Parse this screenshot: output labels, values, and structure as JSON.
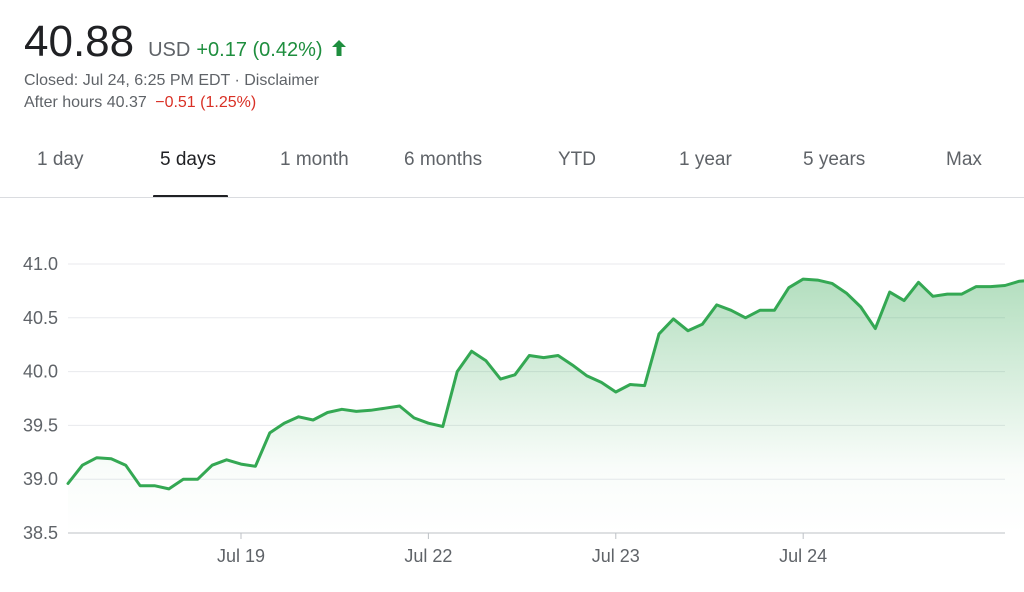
{
  "quote": {
    "price": "40.88",
    "currency": "USD",
    "change": "+0.17 (0.42%)",
    "closed_text": "Closed: Jul 24, 6:25 PM EDT",
    "separator": " · ",
    "disclaimer": "Disclaimer",
    "after_hours_label": "After hours",
    "after_hours_price": "40.37",
    "after_hours_change": "−0.51 (1.25%)",
    "arrow_icon": "arrow-up-icon"
  },
  "tabs": [
    {
      "label": "1 day",
      "active": false
    },
    {
      "label": "5 days",
      "active": true
    },
    {
      "label": "1 month",
      "active": false
    },
    {
      "label": "6 months",
      "active": false
    },
    {
      "label": "YTD",
      "active": false
    },
    {
      "label": "1 year",
      "active": false
    },
    {
      "label": "5 years",
      "active": false
    },
    {
      "label": "Max",
      "active": false
    }
  ],
  "colors": {
    "up": "#1e8e3e",
    "down": "#d93025",
    "line": "#34a853",
    "text_primary": "#202124",
    "text_secondary": "#5f6368",
    "grid": "#e8eaed"
  },
  "chart_data": {
    "type": "area",
    "ylim": [
      38.5,
      41.0
    ],
    "yticks": [
      {
        "label": "41.0",
        "value": 41.0
      },
      {
        "label": "40.5",
        "value": 40.5
      },
      {
        "label": "40.0",
        "value": 40.0
      },
      {
        "label": "39.5",
        "value": 39.5
      },
      {
        "label": "39.0",
        "value": 39.0
      },
      {
        "label": "38.5",
        "value": 38.5
      }
    ],
    "xticks": [
      {
        "label": "Jul 19",
        "index": 12
      },
      {
        "label": "Jul 22",
        "index": 25
      },
      {
        "label": "Jul 23",
        "index": 38
      },
      {
        "label": "Jul 24",
        "index": 51
      }
    ],
    "x_index_range": [
      0,
      65
    ],
    "grid": true,
    "end_marker": true,
    "values": [
      38.96,
      39.13,
      39.2,
      39.19,
      39.13,
      38.94,
      38.94,
      38.91,
      39.0,
      39.0,
      39.13,
      39.18,
      39.14,
      39.12,
      39.43,
      39.52,
      39.58,
      39.55,
      39.62,
      39.65,
      39.63,
      39.64,
      39.66,
      39.68,
      39.57,
      39.52,
      39.49,
      40.0,
      40.19,
      40.1,
      39.93,
      39.97,
      40.15,
      40.13,
      40.15,
      40.06,
      39.96,
      39.9,
      39.81,
      39.88,
      39.87,
      40.35,
      40.49,
      40.38,
      40.44,
      40.62,
      40.57,
      40.5,
      40.57,
      40.57,
      40.78,
      40.86,
      40.85,
      40.82,
      40.73,
      40.6,
      40.4,
      40.74,
      40.66,
      40.83,
      40.7,
      40.72,
      40.72,
      40.79,
      40.79,
      40.8,
      40.84,
      40.85,
      40.9
    ]
  }
}
